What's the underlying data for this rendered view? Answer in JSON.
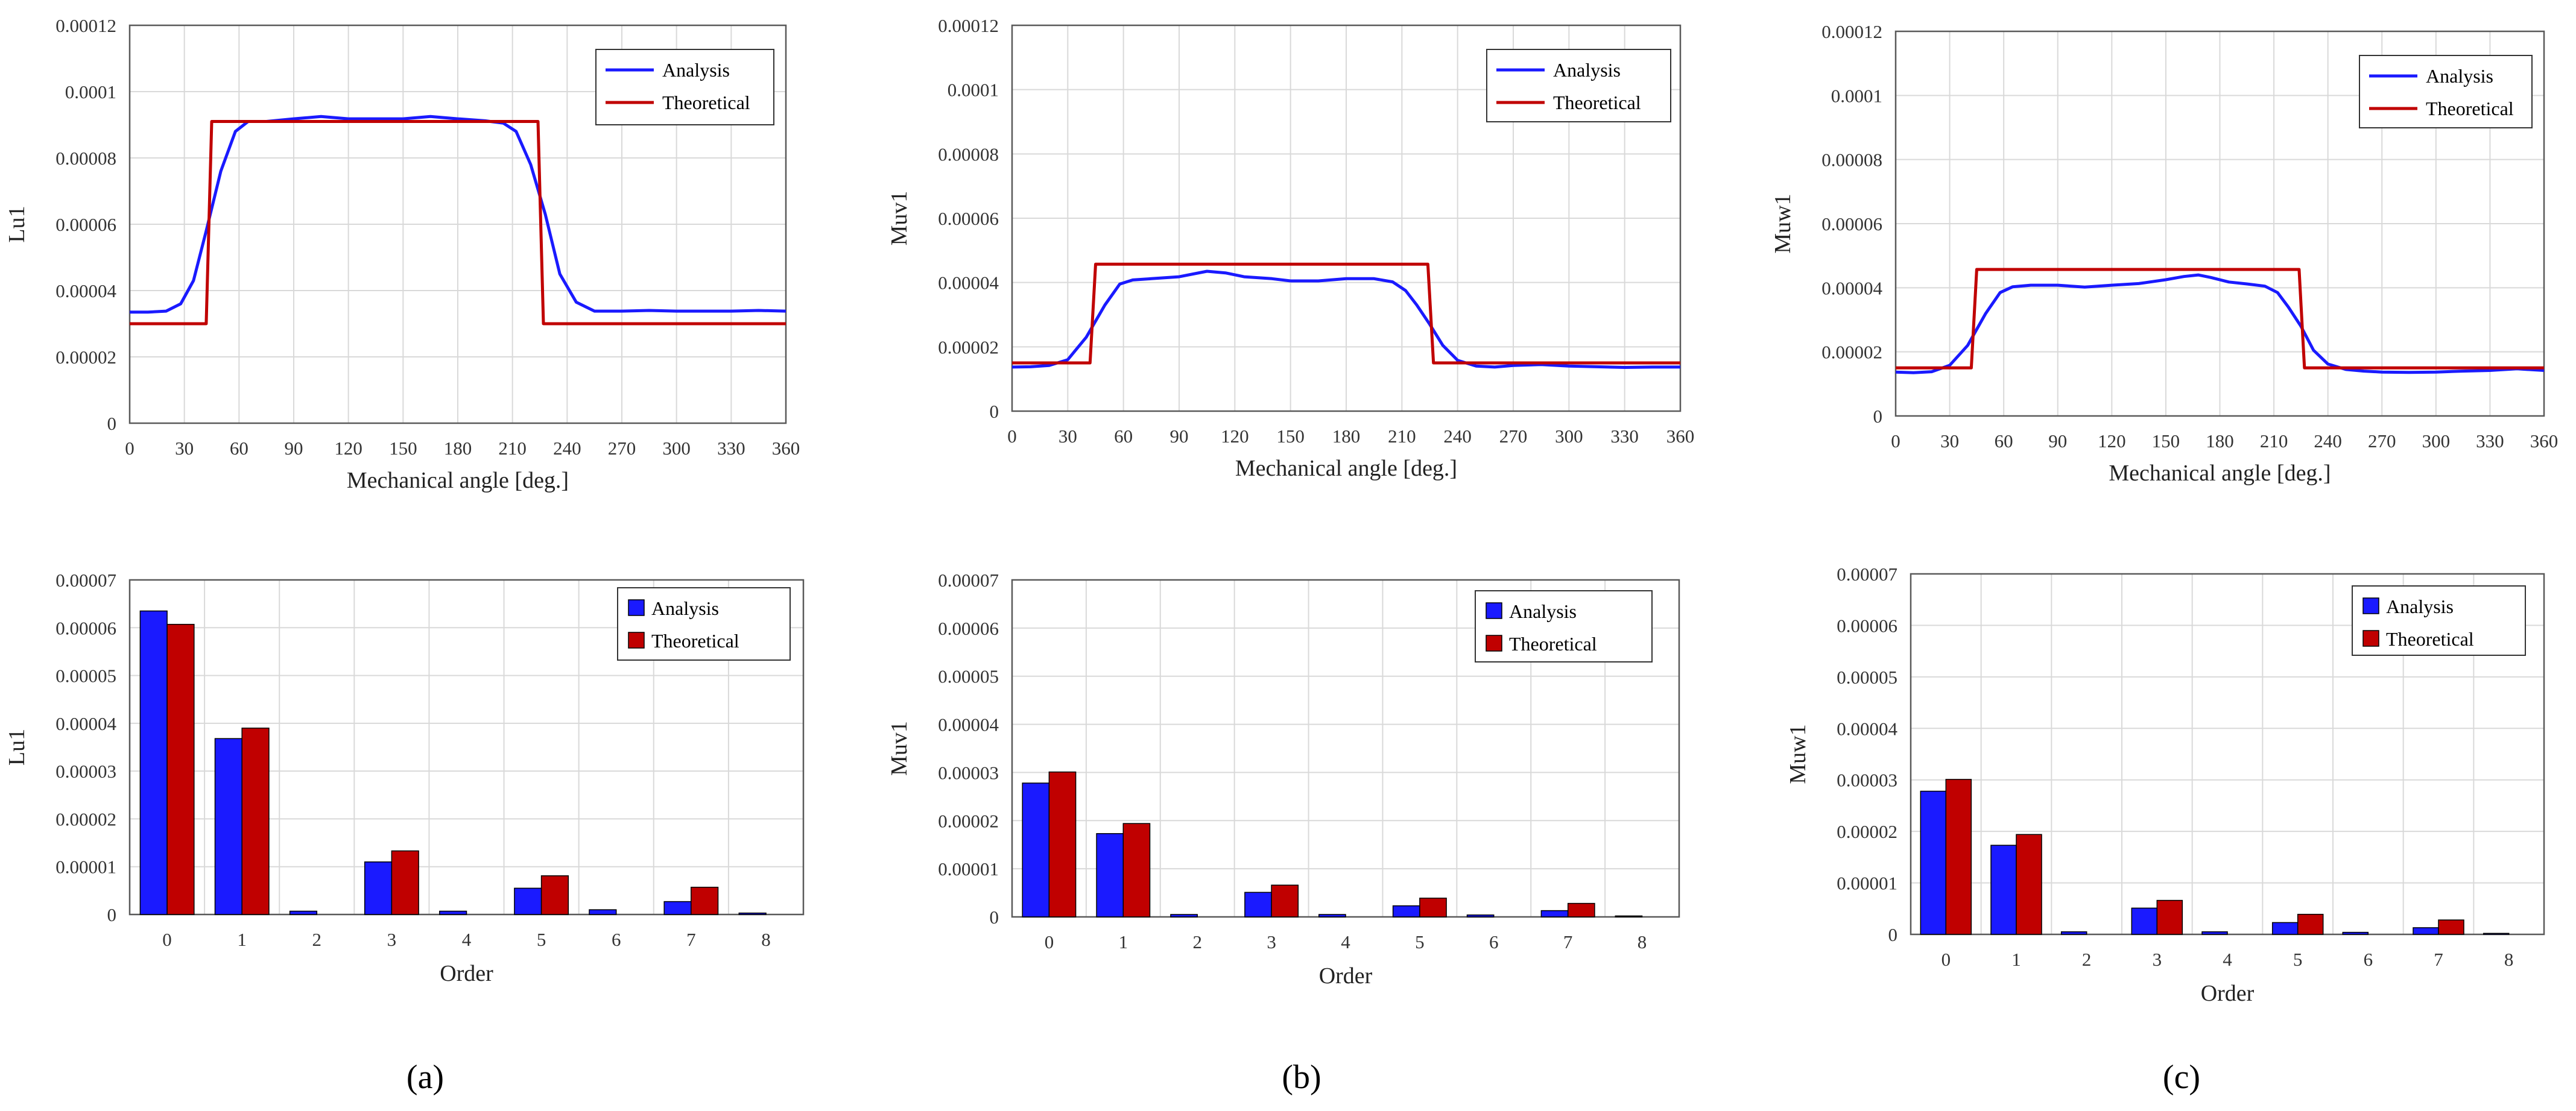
{
  "panel_labels": [
    "(a)",
    "(b)",
    "(c)"
  ],
  "legend": {
    "analysis": "Analysis",
    "theoretical": "Theoretical"
  },
  "colors": {
    "analysis": "#1a1aff",
    "theoretical": "#c00000",
    "grid": "#d9d9d9",
    "frame": "#595959"
  },
  "chart_data": [
    {
      "id": "a-line",
      "type": "line",
      "ylabel": "Lu1",
      "xlabel": "Mechanical angle [deg.]",
      "xlim": [
        0,
        360
      ],
      "ylim": [
        0,
        0.00012
      ],
      "xticks": [
        0,
        30,
        60,
        90,
        120,
        150,
        180,
        210,
        240,
        270,
        300,
        330,
        360
      ],
      "yticks": [
        "0",
        "0.00002",
        "0.00004",
        "0.00006",
        "0.00008",
        "0.0001",
        "0.00012"
      ],
      "legend_position": "top-right",
      "series": [
        {
          "name": "Analysis",
          "x": [
            0,
            10,
            20,
            28,
            35,
            42,
            50,
            58,
            65,
            75,
            90,
            105,
            120,
            135,
            150,
            165,
            180,
            195,
            205,
            212,
            220,
            228,
            236,
            245,
            255,
            270,
            285,
            300,
            315,
            330,
            345,
            360
          ],
          "y": [
            3.35e-05,
            3.35e-05,
            3.38e-05,
            3.6e-05,
            4.3e-05,
            5.8e-05,
            7.6e-05,
            8.8e-05,
            9.1e-05,
            9.1e-05,
            9.18e-05,
            9.25e-05,
            9.18e-05,
            9.18e-05,
            9.18e-05,
            9.25e-05,
            9.18e-05,
            9.12e-05,
            9.05e-05,
            8.8e-05,
            7.8e-05,
            6.3e-05,
            4.5e-05,
            3.65e-05,
            3.38e-05,
            3.38e-05,
            3.4e-05,
            3.38e-05,
            3.38e-05,
            3.38e-05,
            3.4e-05,
            3.38e-05
          ]
        },
        {
          "name": "Theoretical",
          "x": [
            0,
            42,
            45,
            224,
            227,
            360
          ],
          "y": [
            3e-05,
            3e-05,
            9.1e-05,
            9.1e-05,
            3e-05,
            3e-05
          ]
        }
      ]
    },
    {
      "id": "b-line",
      "type": "line",
      "ylabel": "Muv1",
      "xlabel": "Mechanical angle [deg.]",
      "xlim": [
        0,
        360
      ],
      "ylim": [
        0,
        0.00012
      ],
      "xticks": [
        0,
        30,
        60,
        90,
        120,
        150,
        180,
        210,
        240,
        270,
        300,
        330,
        360
      ],
      "yticks": [
        "0",
        "0.00002",
        "0.00004",
        "0.00006",
        "0.00008",
        "0.0001",
        "0.00012"
      ],
      "legend_position": "top-right",
      "series": [
        {
          "name": "Analysis",
          "x": [
            0,
            10,
            20,
            30,
            40,
            50,
            58,
            65,
            75,
            90,
            105,
            115,
            125,
            140,
            150,
            165,
            180,
            195,
            205,
            212,
            218,
            225,
            232,
            240,
            250,
            260,
            270,
            285,
            300,
            315,
            330,
            345,
            360
          ],
          "y": [
            1.37e-05,
            1.38e-05,
            1.42e-05,
            1.6e-05,
            2.3e-05,
            3.3e-05,
            3.95e-05,
            4.08e-05,
            4.12e-05,
            4.18e-05,
            4.35e-05,
            4.3e-05,
            4.18e-05,
            4.12e-05,
            4.05e-05,
            4.05e-05,
            4.12e-05,
            4.12e-05,
            4.02e-05,
            3.75e-05,
            3.3e-05,
            2.7e-05,
            2.05e-05,
            1.58e-05,
            1.4e-05,
            1.37e-05,
            1.42e-05,
            1.45e-05,
            1.4e-05,
            1.38e-05,
            1.36e-05,
            1.37e-05,
            1.37e-05
          ]
        },
        {
          "name": "Theoretical",
          "x": [
            0,
            42,
            45,
            224,
            227,
            360
          ],
          "y": [
            1.5e-05,
            1.5e-05,
            4.57e-05,
            4.57e-05,
            1.5e-05,
            1.5e-05
          ]
        }
      ]
    },
    {
      "id": "c-line",
      "type": "line",
      "ylabel": "Muw1",
      "xlabel": "Mechanical angle [deg.]",
      "xlim": [
        0,
        360
      ],
      "ylim": [
        0,
        0.00012
      ],
      "xticks": [
        0,
        30,
        60,
        90,
        120,
        150,
        180,
        210,
        240,
        270,
        300,
        330,
        360
      ],
      "yticks": [
        "0",
        "0.00002",
        "0.00004",
        "0.00006",
        "0.00008",
        "0.0001",
        "0.00012"
      ],
      "legend_position": "top-right",
      "series": [
        {
          "name": "Analysis",
          "x": [
            0,
            10,
            20,
            30,
            40,
            50,
            58,
            65,
            75,
            90,
            105,
            120,
            135,
            150,
            160,
            168,
            175,
            185,
            195,
            205,
            212,
            218,
            225,
            232,
            240,
            250,
            260,
            270,
            285,
            300,
            315,
            330,
            345,
            360
          ],
          "y": [
            1.37e-05,
            1.35e-05,
            1.38e-05,
            1.58e-05,
            2.2e-05,
            3.2e-05,
            3.85e-05,
            4.03e-05,
            4.08e-05,
            4.08e-05,
            4.02e-05,
            4.08e-05,
            4.13e-05,
            4.25e-05,
            4.35e-05,
            4.4e-05,
            4.32e-05,
            4.18e-05,
            4.12e-05,
            4.05e-05,
            3.85e-05,
            3.4e-05,
            2.8e-05,
            2.05e-05,
            1.62e-05,
            1.45e-05,
            1.4e-05,
            1.37e-05,
            1.36e-05,
            1.37e-05,
            1.4e-05,
            1.42e-05,
            1.47e-05,
            1.42e-05
          ]
        },
        {
          "name": "Theoretical",
          "x": [
            0,
            42,
            45,
            224,
            227,
            360
          ],
          "y": [
            1.5e-05,
            1.5e-05,
            4.57e-05,
            4.57e-05,
            1.5e-05,
            1.5e-05
          ]
        }
      ]
    },
    {
      "id": "a-bar",
      "type": "bar",
      "ylabel": "Lu1",
      "xlabel": "Order",
      "categories": [
        "0",
        "1",
        "2",
        "3",
        "4",
        "5",
        "6",
        "7",
        "8"
      ],
      "ylim": [
        0,
        7e-05
      ],
      "yticks": [
        "0",
        "0.00001",
        "0.00002",
        "0.00003",
        "0.00004",
        "0.00005",
        "0.00006",
        "0.00007"
      ],
      "legend_position": "top-right",
      "series": [
        {
          "name": "Analysis",
          "values": [
            6.35e-05,
            3.68e-05,
            7e-07,
            1.1e-05,
            7e-07,
            5.5e-06,
            1e-06,
            2.7e-06,
            3e-07
          ]
        },
        {
          "name": "Theoretical",
          "values": [
            6.07e-05,
            3.9e-05,
            0,
            1.33e-05,
            0,
            8.1e-06,
            0,
            5.7e-06,
            0
          ]
        }
      ]
    },
    {
      "id": "b-bar",
      "type": "bar",
      "ylabel": "Muv1",
      "xlabel": "Order",
      "categories": [
        "0",
        "1",
        "2",
        "3",
        "4",
        "5",
        "6",
        "7",
        "8"
      ],
      "ylim": [
        0,
        7e-05
      ],
      "yticks": [
        "0",
        "0.00001",
        "0.00002",
        "0.00003",
        "0.00004",
        "0.00005",
        "0.00006",
        "0.00007"
      ],
      "legend_position": "top-right",
      "series": [
        {
          "name": "Analysis",
          "values": [
            2.78e-05,
            1.73e-05,
            5e-07,
            5.1e-06,
            5e-07,
            2.3e-06,
            4e-07,
            1.3e-06,
            2e-07
          ]
        },
        {
          "name": "Theoretical",
          "values": [
            3.01e-05,
            1.94e-05,
            0,
            6.6e-06,
            0,
            3.9e-06,
            0,
            2.8e-06,
            0
          ]
        }
      ]
    },
    {
      "id": "c-bar",
      "type": "bar",
      "ylabel": "Muw1",
      "xlabel": "Order",
      "categories": [
        "0",
        "1",
        "2",
        "3",
        "4",
        "5",
        "6",
        "7",
        "8"
      ],
      "ylim": [
        0,
        7e-05
      ],
      "yticks": [
        "0",
        "0.00001",
        "0.00002",
        "0.00003",
        "0.00004",
        "0.00005",
        "0.00006",
        "0.00007"
      ],
      "legend_position": "top-right",
      "series": [
        {
          "name": "Analysis",
          "values": [
            2.78e-05,
            1.73e-05,
            5e-07,
            5.1e-06,
            5e-07,
            2.3e-06,
            4e-07,
            1.3e-06,
            2e-07
          ]
        },
        {
          "name": "Theoretical",
          "values": [
            3.01e-05,
            1.94e-05,
            0,
            6.6e-06,
            0,
            3.9e-06,
            0,
            2.8e-06,
            0
          ]
        }
      ]
    }
  ]
}
